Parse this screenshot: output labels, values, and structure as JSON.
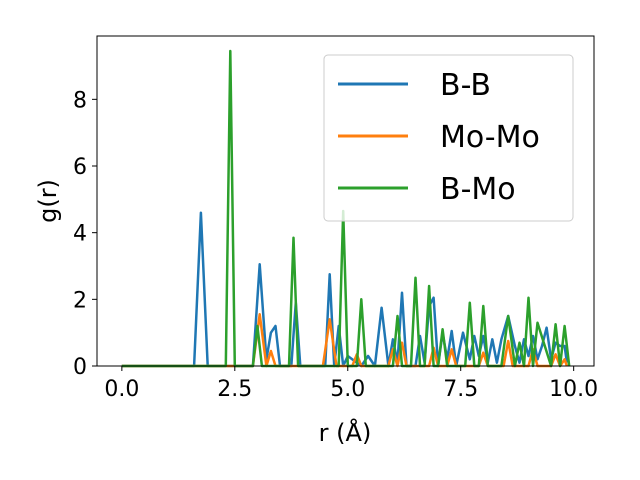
{
  "chart_data": {
    "type": "line",
    "xlabel": "r (Å)",
    "ylabel": "g(r)",
    "xlim": [
      -0.55,
      10.45
    ],
    "ylim": [
      0,
      9.9
    ],
    "xticks": [
      0.0,
      2.5,
      5.0,
      7.5,
      10.0
    ],
    "xtick_labels": [
      "0.0",
      "2.5",
      "5.0",
      "7.5",
      "10.0"
    ],
    "yticks": [
      0,
      2,
      4,
      6,
      8
    ],
    "ytick_labels": [
      "0",
      "2",
      "4",
      "6",
      "8"
    ],
    "grid": false,
    "legend_position": "top-right",
    "series": [
      {
        "name": "B-B",
        "color": "#1f77b4",
        "x": [
          0.0,
          1.6,
          1.75,
          1.9,
          2.9,
          3.05,
          3.2,
          3.3,
          3.4,
          3.5,
          3.75,
          3.85,
          3.95,
          4.5,
          4.6,
          4.7,
          4.8,
          4.9,
          5.0,
          5.3,
          5.45,
          5.6,
          5.75,
          5.9,
          6.0,
          6.1,
          6.2,
          6.3,
          6.5,
          6.6,
          6.7,
          6.8,
          6.9,
          7.0,
          7.1,
          7.2,
          7.3,
          7.4,
          7.55,
          7.7,
          7.8,
          7.9,
          8.0,
          8.1,
          8.2,
          8.3,
          8.4,
          8.55,
          8.7,
          8.8,
          8.9,
          9.0,
          9.1,
          9.2,
          9.3,
          9.4,
          9.5,
          9.6,
          9.7,
          9.8,
          9.85
        ],
        "values": [
          0,
          0,
          4.6,
          0,
          0,
          3.05,
          0.2,
          1.0,
          1.2,
          0,
          0,
          1.9,
          0,
          0,
          2.75,
          0,
          1.2,
          0,
          0.3,
          0,
          0.3,
          0,
          1.75,
          0,
          0.8,
          0.1,
          2.2,
          0,
          0,
          0.9,
          0.1,
          1.8,
          2.05,
          0,
          1.0,
          0.2,
          1.05,
          0,
          1.0,
          0.2,
          0.9,
          0.3,
          0.9,
          0.1,
          0.8,
          0.1,
          0.8,
          1.5,
          0.6,
          0.1,
          0.8,
          0.3,
          0.9,
          0.2,
          0.6,
          1.15,
          0.2,
          0.7,
          0.6,
          0.6,
          0.1
        ]
      },
      {
        "name": "Mo-Mo",
        "color": "#ff7f0e",
        "x": [
          0.0,
          2.9,
          3.05,
          3.2,
          3.3,
          3.4,
          4.45,
          4.6,
          4.75,
          5.1,
          5.2,
          5.3,
          5.9,
          6.0,
          6.1,
          6.2,
          6.3,
          6.8,
          6.9,
          7.0,
          7.2,
          7.3,
          7.4,
          7.9,
          8.0,
          8.1,
          8.45,
          8.55,
          8.65,
          9.0,
          9.1,
          9.2,
          9.5,
          9.6,
          9.7,
          9.8,
          9.85
        ],
        "values": [
          0,
          0,
          1.55,
          0,
          0.45,
          0,
          0,
          1.4,
          0,
          0,
          0.35,
          0,
          0,
          0.5,
          0,
          0.7,
          0,
          0,
          0.55,
          0,
          0,
          0.5,
          0,
          0,
          0.4,
          0,
          0,
          0.75,
          0,
          0,
          0.5,
          0,
          0,
          0.35,
          0,
          0.2,
          0
        ]
      },
      {
        "name": "B-Mo",
        "color": "#2ca02c",
        "x": [
          0.0,
          2.3,
          2.4,
          2.5,
          2.9,
          3.0,
          3.1,
          3.7,
          3.8,
          3.9,
          4.8,
          4.9,
          5.0,
          5.2,
          5.3,
          5.4,
          6.0,
          6.1,
          6.2,
          6.4,
          6.5,
          6.6,
          6.7,
          6.8,
          6.9,
          7.0,
          7.1,
          7.2,
          7.6,
          7.7,
          7.8,
          7.9,
          8.0,
          8.1,
          8.4,
          8.55,
          8.7,
          8.8,
          8.9,
          9.0,
          9.1,
          9.2,
          9.5,
          9.6,
          9.7,
          9.8,
          9.9
        ],
        "values": [
          0,
          0,
          9.45,
          0,
          0,
          1.2,
          0,
          0,
          3.85,
          0,
          0,
          4.65,
          0,
          0,
          2.0,
          0,
          0,
          1.5,
          0,
          0,
          2.65,
          0,
          0,
          2.4,
          0,
          0,
          1.1,
          0,
          0,
          1.9,
          0,
          0,
          1.8,
          0,
          0,
          1.5,
          0,
          0.7,
          0,
          2.05,
          0,
          1.3,
          0,
          1.25,
          0,
          1.2,
          0
        ]
      }
    ]
  }
}
